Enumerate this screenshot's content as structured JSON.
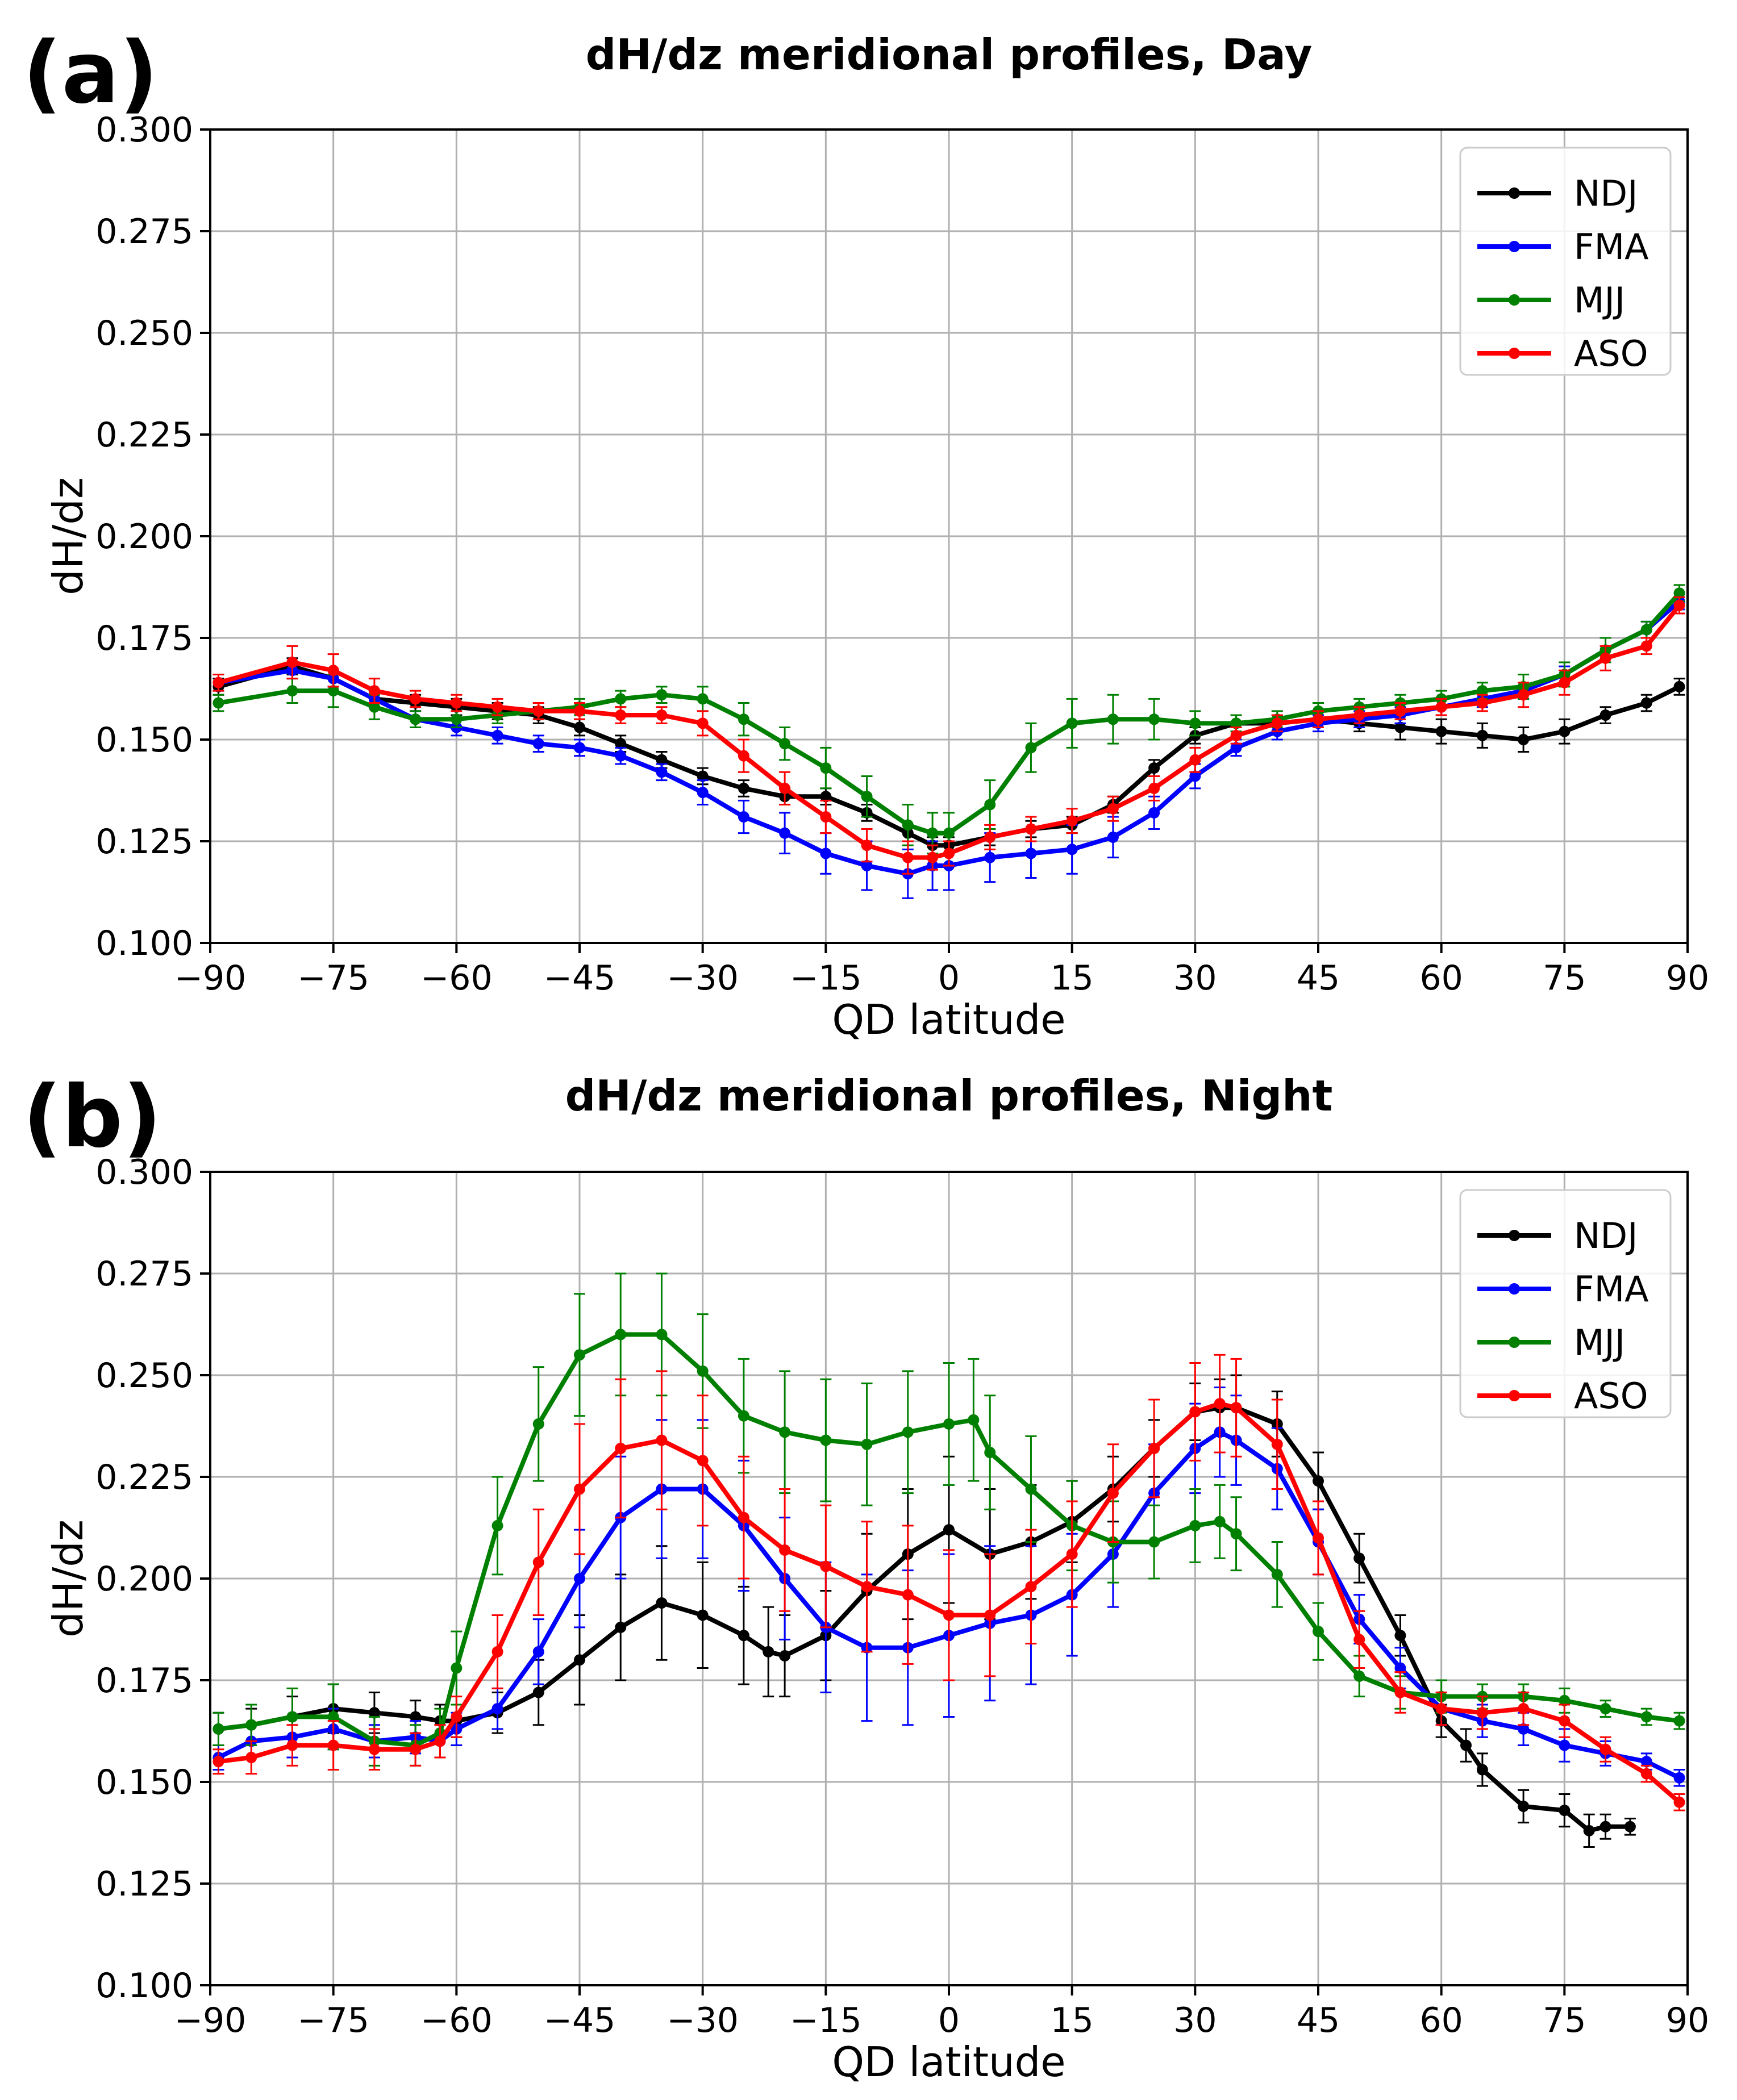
{
  "figure": {
    "panels": [
      {
        "tag": "(a)",
        "title": "dH/dz meridional profiles, Day",
        "xlabel": "QD latitude",
        "ylabel": "dH/dz"
      },
      {
        "tag": "(b)",
        "title": "dH/dz meridional profiles, Night",
        "xlabel": "QD latitude",
        "ylabel": "dH/dz"
      }
    ],
    "x_tick_labels": [
      "−90",
      "−75",
      "−60",
      "−45",
      "−30",
      "−15",
      "0",
      "15",
      "30",
      "45",
      "60",
      "75",
      "90"
    ],
    "y_tick_labels": [
      "0.100",
      "0.125",
      "0.150",
      "0.175",
      "0.200",
      "0.225",
      "0.250",
      "0.275",
      "0.300"
    ],
    "legend": [
      "NDJ",
      "FMA",
      "MJJ",
      "ASO"
    ],
    "colors": {
      "NDJ": "#000000",
      "FMA": "#0000ff",
      "MJJ": "#008000",
      "ASO": "#ff0000",
      "grid": "#b0b0b0"
    }
  },
  "chart_data": [
    {
      "type": "line",
      "title": "dH/dz meridional profiles, Day",
      "xlabel": "QD latitude",
      "ylabel": "dH/dz",
      "xlim": [
        -90,
        90
      ],
      "ylim": [
        0.1,
        0.3
      ],
      "xticks": [
        -90,
        -75,
        -60,
        -45,
        -30,
        -15,
        0,
        15,
        30,
        45,
        60,
        75,
        90
      ],
      "yticks": [
        0.1,
        0.125,
        0.15,
        0.175,
        0.2,
        0.225,
        0.25,
        0.275,
        0.3
      ],
      "grid": true,
      "legend_position": "top-right",
      "x": [
        -89,
        -80,
        -75,
        -70,
        -65,
        -60,
        -55,
        -50,
        -45,
        -40,
        -35,
        -30,
        -25,
        -20,
        -15,
        -10,
        -5,
        -2,
        0,
        5,
        10,
        15,
        20,
        25,
        30,
        35,
        40,
        45,
        50,
        55,
        60,
        65,
        70,
        75,
        80,
        85,
        89
      ],
      "series": [
        {
          "name": "NDJ",
          "values": [
            0.163,
            0.168,
            0.165,
            0.16,
            0.159,
            0.158,
            0.157,
            0.156,
            0.153,
            0.149,
            0.145,
            0.141,
            0.138,
            0.136,
            0.136,
            0.132,
            0.127,
            0.124,
            0.124,
            0.126,
            0.128,
            0.129,
            0.134,
            0.143,
            0.151,
            0.154,
            0.154,
            0.155,
            0.154,
            0.153,
            0.152,
            0.151,
            0.15,
            0.152,
            0.156,
            0.159,
            0.163
          ],
          "err": [
            0.002,
            0.002,
            0.002,
            0.002,
            0.002,
            0.002,
            0.002,
            0.002,
            0.002,
            0.002,
            0.002,
            0.002,
            0.002,
            0.002,
            0.002,
            0.002,
            0.002,
            0.002,
            0.002,
            0.002,
            0.002,
            0.002,
            0.002,
            0.002,
            0.002,
            0.002,
            0.002,
            0.002,
            0.002,
            0.003,
            0.003,
            0.003,
            0.003,
            0.003,
            0.002,
            0.002,
            0.002
          ]
        },
        {
          "name": "FMA",
          "values": [
            0.164,
            0.167,
            0.165,
            0.16,
            0.155,
            0.153,
            0.151,
            0.149,
            0.148,
            0.146,
            0.142,
            0.137,
            0.131,
            0.127,
            0.122,
            0.119,
            0.117,
            0.119,
            0.119,
            0.121,
            0.122,
            0.123,
            0.126,
            0.132,
            0.141,
            0.148,
            0.152,
            0.154,
            0.155,
            0.156,
            0.158,
            0.16,
            0.162,
            0.166,
            0.172,
            0.177,
            0.184
          ],
          "err": [
            0.002,
            0.002,
            0.002,
            0.002,
            0.002,
            0.002,
            0.002,
            0.002,
            0.002,
            0.002,
            0.002,
            0.003,
            0.004,
            0.005,
            0.005,
            0.006,
            0.006,
            0.006,
            0.006,
            0.006,
            0.006,
            0.006,
            0.005,
            0.004,
            0.003,
            0.002,
            0.002,
            0.002,
            0.002,
            0.002,
            0.002,
            0.002,
            0.002,
            0.002,
            0.003,
            0.002,
            0.002
          ]
        },
        {
          "name": "MJJ",
          "values": [
            0.159,
            0.162,
            0.162,
            0.158,
            0.155,
            0.155,
            0.156,
            0.157,
            0.158,
            0.16,
            0.161,
            0.16,
            0.155,
            0.149,
            0.143,
            0.136,
            0.129,
            0.127,
            0.127,
            0.134,
            0.148,
            0.154,
            0.155,
            0.155,
            0.154,
            0.154,
            0.155,
            0.157,
            0.158,
            0.159,
            0.16,
            0.162,
            0.163,
            0.166,
            0.172,
            0.177,
            0.186
          ],
          "err": [
            0.002,
            0.003,
            0.004,
            0.003,
            0.002,
            0.002,
            0.002,
            0.002,
            0.002,
            0.002,
            0.002,
            0.003,
            0.004,
            0.004,
            0.005,
            0.005,
            0.005,
            0.005,
            0.005,
            0.006,
            0.006,
            0.006,
            0.006,
            0.005,
            0.003,
            0.002,
            0.002,
            0.002,
            0.002,
            0.002,
            0.002,
            0.002,
            0.003,
            0.003,
            0.003,
            0.002,
            0.002
          ]
        },
        {
          "name": "ASO",
          "values": [
            0.164,
            0.169,
            0.167,
            0.162,
            0.16,
            0.159,
            0.158,
            0.157,
            0.157,
            0.156,
            0.156,
            0.154,
            0.146,
            0.138,
            0.131,
            0.124,
            0.121,
            0.121,
            0.122,
            0.126,
            0.128,
            0.13,
            0.133,
            0.138,
            0.145,
            0.151,
            0.154,
            0.155,
            0.156,
            0.157,
            0.158,
            0.159,
            0.161,
            0.164,
            0.17,
            0.173,
            0.183
          ],
          "err": [
            0.002,
            0.004,
            0.004,
            0.003,
            0.002,
            0.002,
            0.002,
            0.002,
            0.002,
            0.002,
            0.002,
            0.003,
            0.004,
            0.004,
            0.004,
            0.004,
            0.004,
            0.003,
            0.003,
            0.003,
            0.003,
            0.003,
            0.003,
            0.003,
            0.003,
            0.002,
            0.002,
            0.002,
            0.002,
            0.002,
            0.002,
            0.002,
            0.003,
            0.003,
            0.003,
            0.002,
            0.002
          ]
        }
      ]
    },
    {
      "type": "line",
      "title": "dH/dz meridional profiles, Night",
      "xlabel": "QD latitude",
      "ylabel": "dH/dz",
      "xlim": [
        -90,
        90
      ],
      "ylim": [
        0.1,
        0.3
      ],
      "xticks": [
        -90,
        -75,
        -60,
        -45,
        -30,
        -15,
        0,
        15,
        30,
        45,
        60,
        75,
        90
      ],
      "yticks": [
        0.1,
        0.125,
        0.15,
        0.175,
        0.2,
        0.225,
        0.25,
        0.275,
        0.3
      ],
      "grid": true,
      "legend_position": "top-right",
      "series": [
        {
          "name": "NDJ",
          "x": [
            -89,
            -85,
            -80,
            -75,
            -70,
            -65,
            -62,
            -60,
            -55,
            -50,
            -45,
            -40,
            -35,
            -30,
            -25,
            -22,
            -20,
            -15,
            -10,
            -5,
            0,
            5,
            10,
            15,
            20,
            25,
            30,
            33,
            35,
            40,
            45,
            50,
            55,
            60,
            63,
            65,
            70,
            75,
            78,
            80,
            83
          ],
          "values": [
            0.163,
            0.164,
            0.166,
            0.168,
            0.167,
            0.166,
            0.165,
            0.165,
            0.167,
            0.172,
            0.18,
            0.188,
            0.194,
            0.191,
            0.186,
            0.182,
            0.181,
            0.186,
            0.197,
            0.206,
            0.212,
            0.206,
            0.209,
            0.214,
            0.222,
            0.232,
            0.241,
            0.242,
            0.242,
            0.238,
            0.224,
            0.205,
            0.186,
            0.165,
            0.159,
            0.153,
            0.144,
            0.143,
            0.138,
            0.139,
            0.139
          ],
          "err": [
            0.004,
            0.004,
            0.005,
            0.006,
            0.005,
            0.004,
            0.004,
            0.004,
            0.005,
            0.008,
            0.011,
            0.013,
            0.014,
            0.013,
            0.012,
            0.011,
            0.01,
            0.011,
            0.014,
            0.016,
            0.018,
            0.016,
            0.014,
            0.01,
            0.008,
            0.007,
            0.007,
            0.007,
            0.008,
            0.008,
            0.007,
            0.006,
            0.005,
            0.004,
            0.004,
            0.004,
            0.004,
            0.004,
            0.004,
            0.003,
            0.002
          ]
        },
        {
          "name": "FMA",
          "x": [
            -89,
            -85,
            -80,
            -75,
            -70,
            -65,
            -62,
            -60,
            -55,
            -50,
            -45,
            -40,
            -35,
            -30,
            -25,
            -20,
            -15,
            -10,
            -5,
            0,
            5,
            10,
            15,
            20,
            25,
            30,
            33,
            35,
            40,
            45,
            50,
            55,
            60,
            65,
            70,
            75,
            80,
            85,
            89
          ],
          "values": [
            0.156,
            0.16,
            0.161,
            0.163,
            0.16,
            0.161,
            0.16,
            0.163,
            0.168,
            0.182,
            0.2,
            0.215,
            0.222,
            0.222,
            0.213,
            0.2,
            0.188,
            0.183,
            0.183,
            0.186,
            0.189,
            0.191,
            0.196,
            0.206,
            0.221,
            0.232,
            0.236,
            0.234,
            0.227,
            0.209,
            0.19,
            0.178,
            0.168,
            0.165,
            0.163,
            0.159,
            0.157,
            0.155,
            0.151
          ],
          "err": [
            0.003,
            0.004,
            0.005,
            0.005,
            0.004,
            0.004,
            0.004,
            0.004,
            0.005,
            0.008,
            0.012,
            0.015,
            0.017,
            0.017,
            0.016,
            0.015,
            0.016,
            0.018,
            0.019,
            0.02,
            0.019,
            0.017,
            0.015,
            0.013,
            0.012,
            0.011,
            0.011,
            0.011,
            0.01,
            0.008,
            0.006,
            0.005,
            0.004,
            0.004,
            0.004,
            0.004,
            0.003,
            0.002,
            0.002
          ]
        },
        {
          "name": "MJJ",
          "x": [
            -89,
            -85,
            -80,
            -75,
            -70,
            -65,
            -62,
            -60,
            -55,
            -50,
            -45,
            -40,
            -35,
            -30,
            -25,
            -20,
            -15,
            -10,
            -5,
            0,
            3,
            5,
            10,
            15,
            20,
            25,
            30,
            33,
            35,
            40,
            45,
            50,
            55,
            60,
            65,
            70,
            75,
            80,
            85,
            89
          ],
          "values": [
            0.163,
            0.164,
            0.166,
            0.166,
            0.16,
            0.159,
            0.162,
            0.178,
            0.213,
            0.238,
            0.255,
            0.26,
            0.26,
            0.251,
            0.24,
            0.236,
            0.234,
            0.233,
            0.236,
            0.238,
            0.239,
            0.231,
            0.222,
            0.213,
            0.209,
            0.209,
            0.213,
            0.214,
            0.211,
            0.201,
            0.187,
            0.176,
            0.172,
            0.171,
            0.171,
            0.171,
            0.17,
            0.168,
            0.166,
            0.165
          ],
          "err": [
            0.004,
            0.005,
            0.007,
            0.008,
            0.006,
            0.005,
            0.006,
            0.009,
            0.012,
            0.014,
            0.015,
            0.015,
            0.015,
            0.014,
            0.014,
            0.015,
            0.015,
            0.015,
            0.015,
            0.015,
            0.015,
            0.014,
            0.013,
            0.011,
            0.01,
            0.009,
            0.009,
            0.009,
            0.009,
            0.008,
            0.007,
            0.005,
            0.004,
            0.004,
            0.003,
            0.003,
            0.003,
            0.002,
            0.002,
            0.002
          ]
        },
        {
          "name": "ASO",
          "x": [
            -89,
            -85,
            -80,
            -75,
            -70,
            -65,
            -62,
            -60,
            -55,
            -50,
            -45,
            -40,
            -35,
            -30,
            -25,
            -20,
            -15,
            -10,
            -5,
            0,
            5,
            10,
            15,
            20,
            25,
            30,
            33,
            35,
            40,
            45,
            50,
            55,
            60,
            65,
            70,
            75,
            80,
            85,
            89
          ],
          "values": [
            0.155,
            0.156,
            0.159,
            0.159,
            0.158,
            0.158,
            0.16,
            0.166,
            0.182,
            0.204,
            0.222,
            0.232,
            0.234,
            0.229,
            0.215,
            0.207,
            0.203,
            0.198,
            0.196,
            0.191,
            0.191,
            0.198,
            0.206,
            0.221,
            0.232,
            0.241,
            0.243,
            0.242,
            0.233,
            0.21,
            0.185,
            0.172,
            0.168,
            0.167,
            0.168,
            0.165,
            0.158,
            0.152,
            0.145
          ],
          "err": [
            0.003,
            0.004,
            0.005,
            0.006,
            0.005,
            0.004,
            0.004,
            0.005,
            0.009,
            0.013,
            0.016,
            0.017,
            0.017,
            0.016,
            0.015,
            0.015,
            0.015,
            0.016,
            0.017,
            0.016,
            0.015,
            0.014,
            0.013,
            0.012,
            0.012,
            0.012,
            0.012,
            0.012,
            0.011,
            0.009,
            0.007,
            0.005,
            0.004,
            0.004,
            0.004,
            0.004,
            0.003,
            0.002,
            0.002
          ]
        }
      ]
    }
  ]
}
